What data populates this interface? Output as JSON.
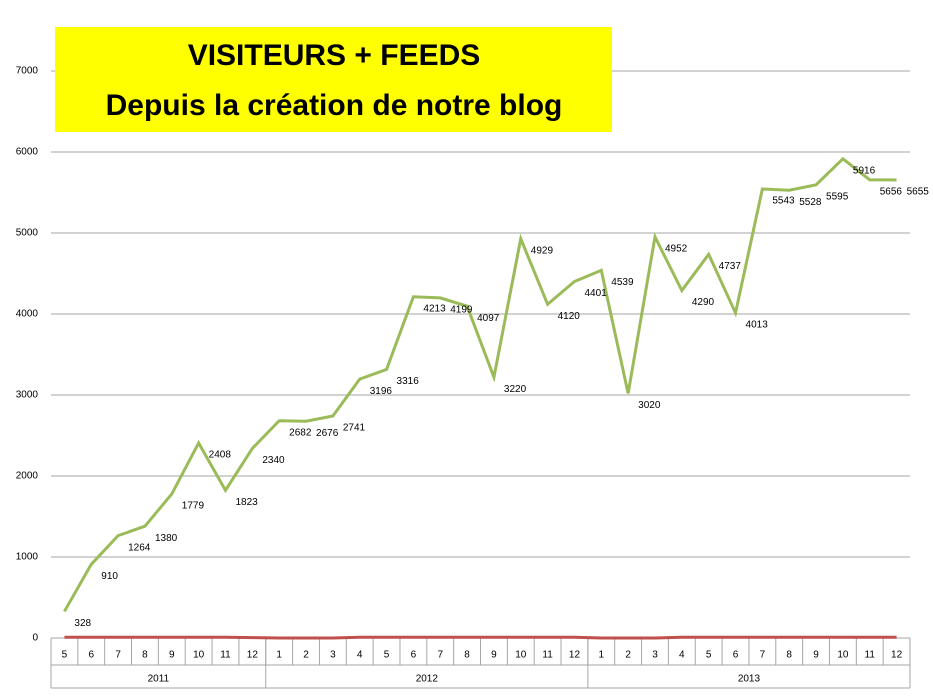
{
  "chart_data": {
    "type": "line",
    "title": "VISITEURS    +    FEEDS",
    "subtitle": "Depuis la création de notre blog",
    "categories": [
      "5",
      "6",
      "7",
      "8",
      "9",
      "10",
      "11",
      "12",
      "1",
      "2",
      "3",
      "4",
      "5",
      "6",
      "7",
      "8",
      "9",
      "10",
      "11",
      "12",
      "1",
      "2",
      "3",
      "4",
      "5",
      "6",
      "7",
      "8",
      "9",
      "10",
      "11",
      "12"
    ],
    "groups": [
      "2011",
      "2012",
      "2013"
    ],
    "series": [
      {
        "color": "#9bbb59",
        "values": [
          328,
          910,
          1264,
          1380,
          1779,
          2408,
          1823,
          2340,
          2682,
          2676,
          2741,
          3196,
          3316,
          4213,
          4199,
          4097,
          3220,
          4929,
          4120,
          4401,
          4539,
          3020,
          4952,
          4290,
          4737,
          4013,
          5543,
          5528,
          5595,
          5916,
          5656,
          5655
        ],
        "labels": true
      },
      {
        "color": "#c0504d",
        "values": [
          10,
          10,
          10,
          10,
          10,
          10,
          10,
          5,
          0,
          0,
          0,
          10,
          10,
          10,
          10,
          10,
          10,
          10,
          10,
          10,
          0,
          0,
          0,
          10,
          10,
          10,
          10,
          10,
          10,
          10,
          10,
          10
        ],
        "labels": false
      }
    ],
    "ylim": [
      0,
      7000
    ],
    "yticks": [
      0,
      1000,
      2000,
      3000,
      4000,
      5000,
      6000,
      7000
    ],
    "grid": true,
    "title_background": "#ffff00"
  }
}
